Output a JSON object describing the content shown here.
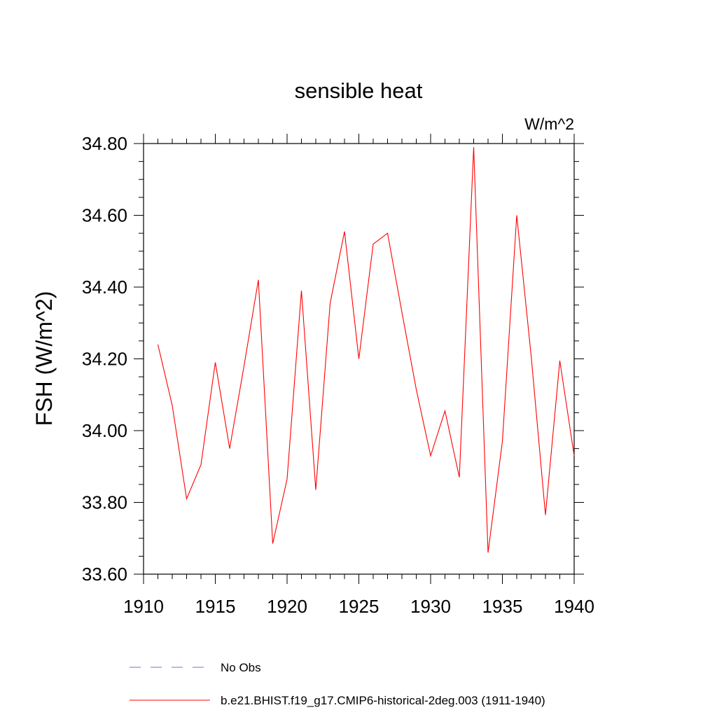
{
  "chart_data": {
    "type": "line",
    "title": "sensible heat",
    "units_label": "W/m^2",
    "ylabel": "FSH  (W/m^2)",
    "xlabel": "",
    "xlim": [
      1910,
      1940
    ],
    "ylim": [
      33.6,
      34.8
    ],
    "x_ticks": [
      1910,
      1915,
      1920,
      1925,
      1930,
      1935,
      1940
    ],
    "x_tick_labels": [
      "1910",
      "1915",
      "1920",
      "1925",
      "1930",
      "1935",
      "1940"
    ],
    "y_ticks": [
      33.6,
      33.8,
      34.0,
      34.2,
      34.4,
      34.6,
      34.8
    ],
    "y_tick_labels": [
      "33.60",
      "33.80",
      "34.00",
      "34.20",
      "34.40",
      "34.60",
      "34.80"
    ],
    "grid": false,
    "legend_position": "bottom",
    "series": [
      {
        "name": "b.e21.BHIST.f19_g17.CMIP6-historical-2deg.003 (1911-1940)",
        "color": "#ff0000",
        "style": "solid",
        "x": [
          1911,
          1912,
          1913,
          1914,
          1915,
          1916,
          1917,
          1918,
          1919,
          1920,
          1921,
          1922,
          1923,
          1924,
          1925,
          1926,
          1927,
          1928,
          1929,
          1930,
          1931,
          1932,
          1933,
          1934,
          1935,
          1936,
          1937,
          1938,
          1939,
          1940
        ],
        "values": [
          34.24,
          34.07,
          33.81,
          33.905,
          34.19,
          33.95,
          34.18,
          34.42,
          33.685,
          33.865,
          34.39,
          33.835,
          34.355,
          34.555,
          34.2,
          34.52,
          34.55,
          34.33,
          34.115,
          33.93,
          34.055,
          33.87,
          34.79,
          33.66,
          33.97,
          34.6,
          34.21,
          33.765,
          34.195,
          33.93
        ]
      }
    ],
    "legend": [
      {
        "label": "No Obs",
        "color": "#7b6fd0",
        "style": "dashed"
      },
      {
        "label": "b.e21.BHIST.f19_g17.CMIP6-historical-2deg.003 (1911-1940)",
        "color": "#ff0000",
        "style": "solid"
      }
    ]
  }
}
